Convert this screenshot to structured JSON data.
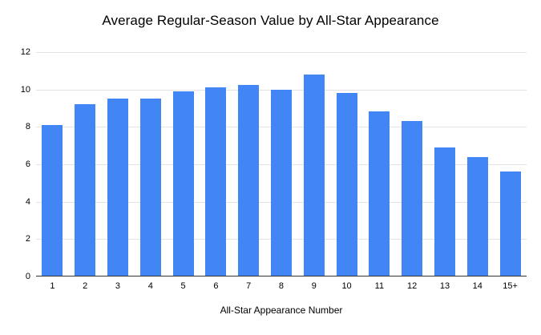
{
  "chart_data": {
    "type": "bar",
    "title": "Average Regular-Season Value by All-Star Appearance",
    "xlabel": "All-Star Appearance Number",
    "ylabel": "",
    "categories": [
      "1",
      "2",
      "3",
      "4",
      "5",
      "6",
      "7",
      "8",
      "9",
      "10",
      "11",
      "12",
      "13",
      "14",
      "15+"
    ],
    "values": [
      8.1,
      9.2,
      9.5,
      9.5,
      9.9,
      10.1,
      10.25,
      10.0,
      10.8,
      9.8,
      8.85,
      8.3,
      6.9,
      6.4,
      5.6
    ],
    "ylim": [
      0,
      12
    ],
    "yticks": [
      0,
      2,
      4,
      6,
      8,
      10,
      12
    ],
    "grid": true,
    "legend": false,
    "bar_color": "#4285f4",
    "background": "#ffffff",
    "gridline_color": "#e3e3e3",
    "axis_color": "#333333"
  }
}
